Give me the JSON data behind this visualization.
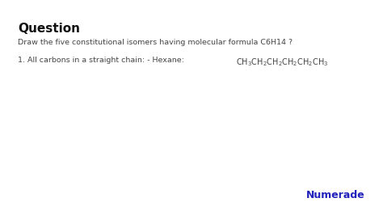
{
  "background_color": "#ffffff",
  "title_text": "Question",
  "title_fontsize": 11,
  "title_fontweight": "bold",
  "title_color": "#111111",
  "subtitle_text": "Draw the five constitutional isomers having molecular formula C6H14 ?",
  "subtitle_fontsize": 6.8,
  "subtitle_color": "#444444",
  "line1_prefix": "1. All carbons in a straight chain: - Hexane: ",
  "line1_fontsize": 6.8,
  "line1_color": "#444444",
  "formula_fontsize": 7.0,
  "numerade_text": "Numerade",
  "numerade_fontsize": 9,
  "numerade_color": "#2222bb",
  "numerade_fontweight": "bold"
}
